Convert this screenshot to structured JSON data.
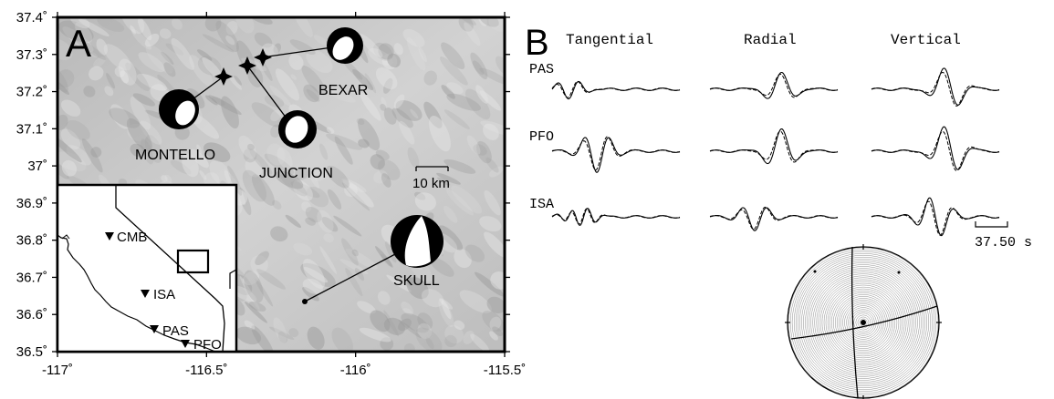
{
  "panel_a": {
    "letter": "A",
    "y_ticks": [
      "37.4˚",
      "37.3˚",
      "37.2˚",
      "37.1˚",
      "37˚",
      "36.9˚",
      "36.8˚",
      "36.7˚",
      "36.6˚",
      "36.5˚"
    ],
    "x_ticks": [
      "-117˚",
      "-116.5˚",
      "-116˚",
      "-115.5˚"
    ],
    "events": [
      {
        "label": "MONTELLO"
      },
      {
        "label": "BEXAR"
      },
      {
        "label": "JUNCTION"
      },
      {
        "label": "SKULL"
      }
    ],
    "scale_label": "10 km",
    "inset": {
      "stations": [
        {
          "label": "CMB"
        },
        {
          "label": "ISA"
        },
        {
          "label": "PAS"
        },
        {
          "label": "PFO"
        }
      ]
    }
  },
  "panel_b": {
    "letter": "B",
    "columns": [
      "Tangential",
      "Radial",
      "Vertical"
    ],
    "rows": [
      "PAS",
      "PFO",
      "ISA"
    ],
    "time_scale": "37.50 s"
  },
  "colors": {
    "relief": "#c8c8c8",
    "ink": "#000000"
  }
}
